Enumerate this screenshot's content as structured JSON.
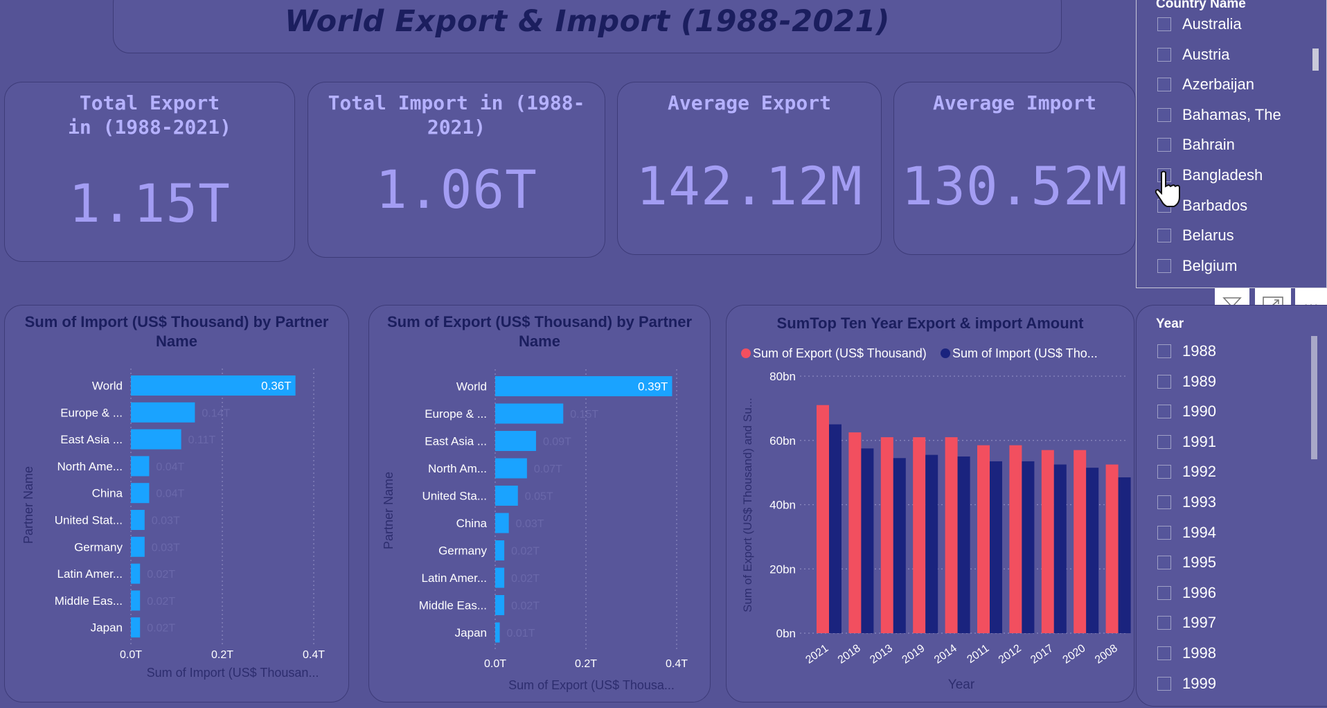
{
  "dashboard": {
    "title": "World Export & Import (1988-2021)"
  },
  "kpis": [
    {
      "label": "Total Export in (1988-2021)",
      "value": "1.15T"
    },
    {
      "label": "Total Import in (1988-2021)",
      "value": "1.06T"
    },
    {
      "label": "Average Export",
      "value": "142.12M"
    },
    {
      "label": "Average Import",
      "value": "130.52M"
    }
  ],
  "country_slicer": {
    "header": "Country Name",
    "items": [
      "Australia",
      "Austria",
      "Azerbaijan",
      "Bahamas, The",
      "Bahrain",
      "Bangladesh",
      "Barbados",
      "Belarus",
      "Belgium"
    ]
  },
  "year_slicer": {
    "header": "Year",
    "items": [
      "1988",
      "1989",
      "1990",
      "1991",
      "1992",
      "1993",
      "1994",
      "1995",
      "1996",
      "1997",
      "1998",
      "1999"
    ]
  },
  "toolbar": {
    "icons": [
      "filter-icon",
      "focus-mode-icon",
      "more-options-icon"
    ],
    "more_label": "···"
  },
  "colors": {
    "background": "#555396",
    "bar_blue": "#1aa3ff",
    "export_red": "#f24f5f",
    "import_navy": "#1a237e",
    "title_navy": "#1b1e5e",
    "kpi_value": "#a39df3"
  },
  "chart_data": [
    {
      "type": "bar",
      "orientation": "horizontal",
      "title": "Sum of Import (US$ Thousand) by Partner Name",
      "xlabel": "Sum of Import (US$ Thousan...",
      "ylabel": "Partner Name",
      "categories": [
        "World",
        "Europe & ...",
        "East Asia ...",
        "North Ame...",
        "China",
        "United Stat...",
        "Germany",
        "Latin Amer...",
        "Middle Eas...",
        "Japan"
      ],
      "values": [
        0.36,
        0.14,
        0.11,
        0.04,
        0.04,
        0.03,
        0.03,
        0.02,
        0.02,
        0.02
      ],
      "data_labels": [
        "0.36T",
        "0.14T",
        "0.11T",
        "0.04T",
        "0.04T",
        "0.03T",
        "0.03T",
        "0.02T",
        "0.02T",
        "0.02T"
      ],
      "xticks": [
        "0.0T",
        "0.2T",
        "0.4T"
      ],
      "xlim": [
        0,
        0.4
      ],
      "grid": true
    },
    {
      "type": "bar",
      "orientation": "horizontal",
      "title": "Sum of Export (US$ Thousand) by Partner Name",
      "xlabel": "Sum of Export (US$ Thousa...",
      "ylabel": "Partner Name",
      "categories": [
        "World",
        "Europe & ...",
        "East Asia ...",
        "North Am...",
        "United Sta...",
        "China",
        "Germany",
        "Latin Amer...",
        "Middle Eas...",
        "Japan"
      ],
      "values": [
        0.39,
        0.15,
        0.09,
        0.07,
        0.05,
        0.03,
        0.02,
        0.02,
        0.02,
        0.01
      ],
      "data_labels": [
        "0.39T",
        "0.15T",
        "0.09T",
        "0.07T",
        "0.05T",
        "0.03T",
        "0.02T",
        "0.02T",
        "0.02T",
        "0.01T"
      ],
      "xticks": [
        "0.0T",
        "0.2T",
        "0.4T"
      ],
      "xlim": [
        0,
        0.4
      ],
      "grid": true
    },
    {
      "type": "bar",
      "orientation": "vertical",
      "title": "SumTop Ten Year Export & import Amount",
      "xlabel": "Year",
      "ylabel": "Sum of Export (US$ Thousand) and Su...",
      "categories": [
        "2021",
        "2018",
        "2013",
        "2019",
        "2014",
        "2011",
        "2012",
        "2017",
        "2020",
        "2008"
      ],
      "series": [
        {
          "name": "Sum of Export (US$ Thousand)",
          "values": [
            71,
            62.5,
            61,
            61,
            61,
            58.5,
            58.5,
            57,
            57,
            52.5
          ]
        },
        {
          "name": "Sum of Import (US$ Tho...",
          "values": [
            65,
            57.5,
            54.5,
            55.5,
            55,
            53.5,
            53.5,
            52.5,
            51.5,
            48.5
          ]
        }
      ],
      "yticks": [
        "0bn",
        "20bn",
        "40bn",
        "60bn",
        "80bn"
      ],
      "ylim": [
        0,
        80
      ],
      "legend": "top",
      "grid": true
    }
  ]
}
